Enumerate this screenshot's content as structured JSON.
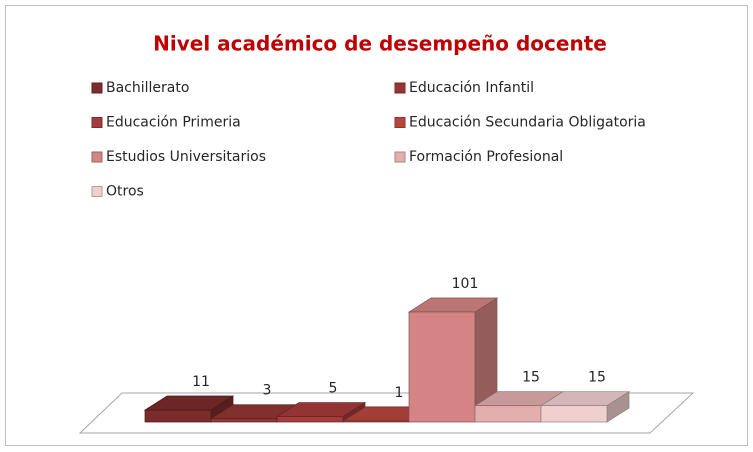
{
  "chart_data": {
    "type": "bar3d",
    "title": "Nivel académico de desempeño docente",
    "categories": [
      "Bachillerato",
      "Educación Infantil",
      "Educación Primeria",
      "Educación Secundaria Obligatoria",
      "Estudios Universitarios",
      "Formación Profesional",
      "Otros"
    ],
    "values": [
      11,
      3,
      5,
      1,
      101,
      15,
      15
    ],
    "colors": [
      "#7b2b2b",
      "#943634",
      "#a53b3a",
      "#b8453f",
      "#d48583",
      "#e3aeae",
      "#f0cfcf"
    ],
    "legend": "top"
  }
}
